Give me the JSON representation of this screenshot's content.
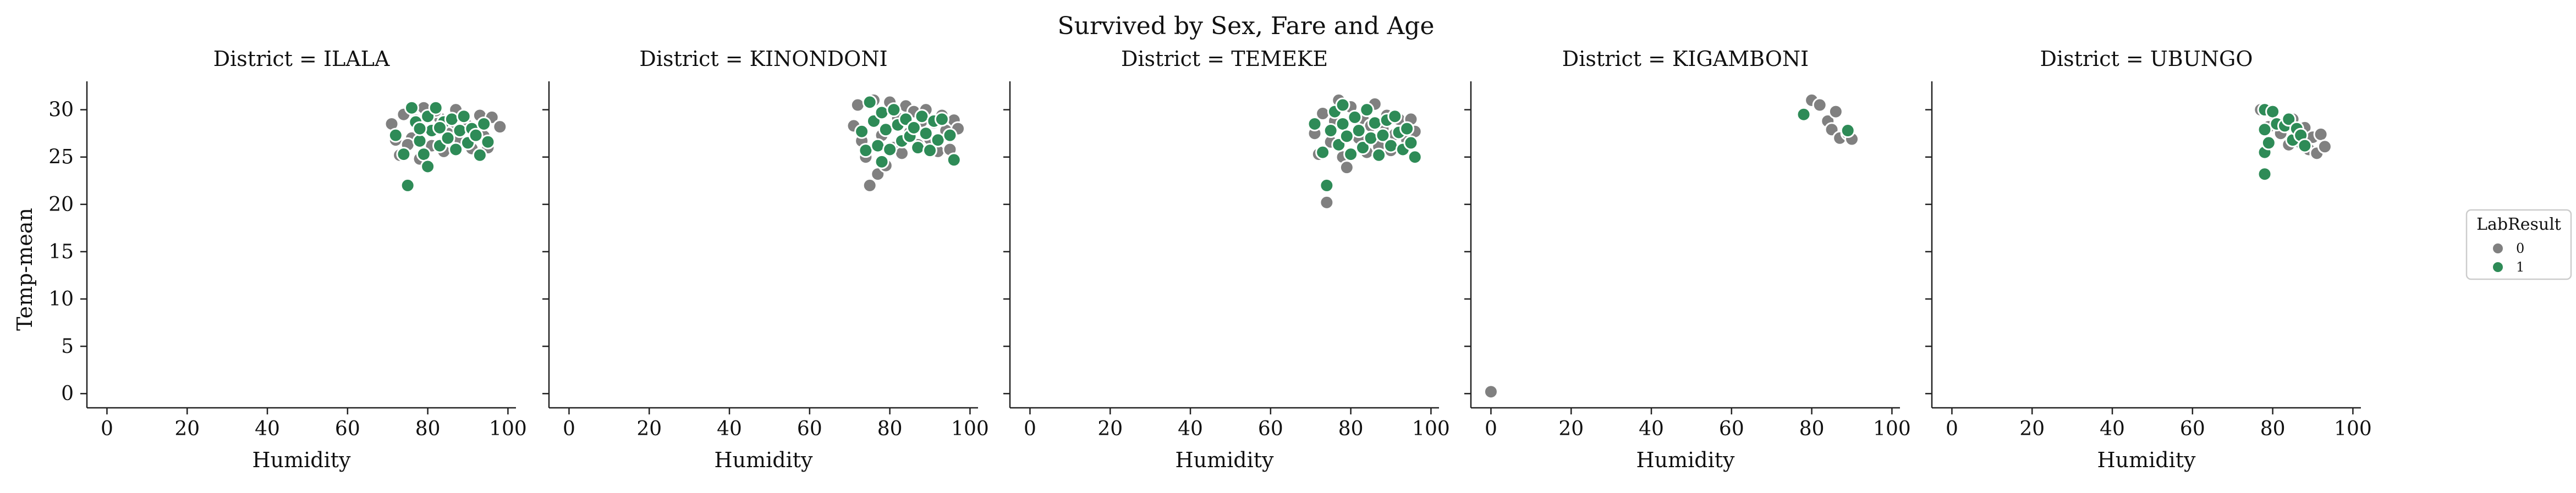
{
  "chart_data": {
    "type": "scatter",
    "title": "Survived by Sex, Fare and Age",
    "xlabel": "Humidity",
    "ylabel": "Temp-mean",
    "xlim": [
      -5,
      102
    ],
    "ylim": [
      -1.5,
      33
    ],
    "xticks": [
      0,
      20,
      40,
      60,
      80,
      100
    ],
    "yticks": [
      0,
      5,
      10,
      15,
      20,
      25,
      30
    ],
    "grid": false,
    "legend": {
      "title": "LabResult",
      "position": "right",
      "entries": [
        {
          "label": "0",
          "color": "#808080"
        },
        {
          "label": "1",
          "color": "#2e8b57"
        }
      ]
    },
    "colors": {
      "0": "#808080",
      "1": "#2e8b57"
    },
    "panels": [
      {
        "title": "District = ILALA",
        "points": [
          {
            "x": 71,
            "y": 28.5,
            "result": 0
          },
          {
            "x": 72,
            "y": 26.8,
            "result": 0
          },
          {
            "x": 73,
            "y": 25.2,
            "result": 0
          },
          {
            "x": 74,
            "y": 29.5,
            "result": 0
          },
          {
            "x": 76,
            "y": 27.0,
            "result": 0
          },
          {
            "x": 78,
            "y": 24.8,
            "result": 0
          },
          {
            "x": 79,
            "y": 30.2,
            "result": 0
          },
          {
            "x": 81,
            "y": 26.2,
            "result": 0
          },
          {
            "x": 83,
            "y": 29.1,
            "result": 0
          },
          {
            "x": 84,
            "y": 25.6,
            "result": 0
          },
          {
            "x": 86,
            "y": 28.0,
            "result": 0
          },
          {
            "x": 87,
            "y": 30.0,
            "result": 0
          },
          {
            "x": 88,
            "y": 26.9,
            "result": 0
          },
          {
            "x": 90,
            "y": 28.3,
            "result": 0
          },
          {
            "x": 91,
            "y": 25.9,
            "result": 0
          },
          {
            "x": 93,
            "y": 29.4,
            "result": 0
          },
          {
            "x": 94,
            "y": 27.2,
            "result": 0
          },
          {
            "x": 95,
            "y": 26.0,
            "result": 0
          },
          {
            "x": 96,
            "y": 29.2,
            "result": 0
          },
          {
            "x": 98,
            "y": 28.2,
            "result": 0
          },
          {
            "x": 82,
            "y": 29.9,
            "result": 0
          },
          {
            "x": 77,
            "y": 28.9,
            "result": 0
          },
          {
            "x": 85,
            "y": 27.5,
            "result": 0
          },
          {
            "x": 75,
            "y": 26.3,
            "result": 0
          },
          {
            "x": 72,
            "y": 27.3,
            "result": 1
          },
          {
            "x": 74,
            "y": 25.3,
            "result": 1
          },
          {
            "x": 75,
            "y": 22.0,
            "result": 1
          },
          {
            "x": 76,
            "y": 30.2,
            "result": 1
          },
          {
            "x": 77,
            "y": 28.7,
            "result": 1
          },
          {
            "x": 78,
            "y": 26.7,
            "result": 1
          },
          {
            "x": 79,
            "y": 25.3,
            "result": 1
          },
          {
            "x": 80,
            "y": 24.0,
            "result": 1
          },
          {
            "x": 80,
            "y": 29.3,
            "result": 1
          },
          {
            "x": 81,
            "y": 27.8,
            "result": 1
          },
          {
            "x": 82,
            "y": 30.2,
            "result": 1
          },
          {
            "x": 83,
            "y": 26.2,
            "result": 1
          },
          {
            "x": 84,
            "y": 28.7,
            "result": 1
          },
          {
            "x": 85,
            "y": 27.0,
            "result": 1
          },
          {
            "x": 86,
            "y": 29.0,
            "result": 1
          },
          {
            "x": 87,
            "y": 25.8,
            "result": 1
          },
          {
            "x": 88,
            "y": 27.8,
            "result": 1
          },
          {
            "x": 89,
            "y": 29.3,
            "result": 1
          },
          {
            "x": 90,
            "y": 26.5,
            "result": 1
          },
          {
            "x": 91,
            "y": 28.0,
            "result": 1
          },
          {
            "x": 92,
            "y": 27.3,
            "result": 1
          },
          {
            "x": 93,
            "y": 25.2,
            "result": 1
          },
          {
            "x": 94,
            "y": 28.5,
            "result": 1
          },
          {
            "x": 95,
            "y": 26.6,
            "result": 1
          },
          {
            "x": 78,
            "y": 28.0,
            "result": 1
          },
          {
            "x": 83,
            "y": 28.1,
            "result": 1
          }
        ]
      },
      {
        "title": "District = KINONDONI",
        "points": [
          {
            "x": 71,
            "y": 28.3,
            "result": 0
          },
          {
            "x": 72,
            "y": 30.5,
            "result": 0
          },
          {
            "x": 73,
            "y": 26.7,
            "result": 0
          },
          {
            "x": 74,
            "y": 25.0,
            "result": 0
          },
          {
            "x": 75,
            "y": 22.0,
            "result": 0
          },
          {
            "x": 76,
            "y": 31.0,
            "result": 0
          },
          {
            "x": 77,
            "y": 23.2,
            "result": 0
          },
          {
            "x": 78,
            "y": 27.3,
            "result": 0
          },
          {
            "x": 79,
            "y": 24.1,
            "result": 0
          },
          {
            "x": 80,
            "y": 30.8,
            "result": 0
          },
          {
            "x": 81,
            "y": 26.0,
            "result": 0
          },
          {
            "x": 82,
            "y": 29.1,
            "result": 0
          },
          {
            "x": 83,
            "y": 25.4,
            "result": 0
          },
          {
            "x": 84,
            "y": 30.4,
            "result": 0
          },
          {
            "x": 85,
            "y": 27.6,
            "result": 0
          },
          {
            "x": 86,
            "y": 29.8,
            "result": 0
          },
          {
            "x": 87,
            "y": 26.3,
            "result": 0
          },
          {
            "x": 88,
            "y": 28.8,
            "result": 0
          },
          {
            "x": 89,
            "y": 30.0,
            "result": 0
          },
          {
            "x": 90,
            "y": 26.9,
            "result": 0
          },
          {
            "x": 91,
            "y": 28.6,
            "result": 0
          },
          {
            "x": 92,
            "y": 25.6,
            "result": 0
          },
          {
            "x": 93,
            "y": 29.4,
            "result": 0
          },
          {
            "x": 94,
            "y": 27.8,
            "result": 0
          },
          {
            "x": 95,
            "y": 25.8,
            "result": 0
          },
          {
            "x": 96,
            "y": 28.9,
            "result": 0
          },
          {
            "x": 97,
            "y": 28.0,
            "result": 0
          },
          {
            "x": 73,
            "y": 27.7,
            "result": 1
          },
          {
            "x": 74,
            "y": 25.7,
            "result": 1
          },
          {
            "x": 75,
            "y": 30.8,
            "result": 1
          },
          {
            "x": 76,
            "y": 28.8,
            "result": 1
          },
          {
            "x": 77,
            "y": 26.2,
            "result": 1
          },
          {
            "x": 78,
            "y": 29.7,
            "result": 1
          },
          {
            "x": 78,
            "y": 24.5,
            "result": 1
          },
          {
            "x": 79,
            "y": 27.9,
            "result": 1
          },
          {
            "x": 80,
            "y": 25.8,
            "result": 1
          },
          {
            "x": 81,
            "y": 30.0,
            "result": 1
          },
          {
            "x": 82,
            "y": 28.4,
            "result": 1
          },
          {
            "x": 83,
            "y": 26.7,
            "result": 1
          },
          {
            "x": 84,
            "y": 29.0,
            "result": 1
          },
          {
            "x": 85,
            "y": 27.2,
            "result": 1
          },
          {
            "x": 86,
            "y": 28.1,
            "result": 1
          },
          {
            "x": 87,
            "y": 26.0,
            "result": 1
          },
          {
            "x": 88,
            "y": 29.3,
            "result": 1
          },
          {
            "x": 89,
            "y": 27.5,
            "result": 1
          },
          {
            "x": 90,
            "y": 25.7,
            "result": 1
          },
          {
            "x": 91,
            "y": 28.8,
            "result": 1
          },
          {
            "x": 92,
            "y": 26.8,
            "result": 1
          },
          {
            "x": 93,
            "y": 29.0,
            "result": 1
          },
          {
            "x": 95,
            "y": 27.3,
            "result": 1
          },
          {
            "x": 96,
            "y": 24.7,
            "result": 1
          }
        ]
      },
      {
        "title": "District = TEMEKE",
        "points": [
          {
            "x": 71,
            "y": 27.5,
            "result": 0
          },
          {
            "x": 72,
            "y": 25.3,
            "result": 0
          },
          {
            "x": 73,
            "y": 29.6,
            "result": 0
          },
          {
            "x": 74,
            "y": 20.2,
            "result": 0
          },
          {
            "x": 75,
            "y": 26.6,
            "result": 0
          },
          {
            "x": 76,
            "y": 28.8,
            "result": 0
          },
          {
            "x": 77,
            "y": 31.0,
            "result": 0
          },
          {
            "x": 78,
            "y": 25.0,
            "result": 0
          },
          {
            "x": 79,
            "y": 23.9,
            "result": 0
          },
          {
            "x": 80,
            "y": 30.3,
            "result": 0
          },
          {
            "x": 82,
            "y": 27.0,
            "result": 0
          },
          {
            "x": 83,
            "y": 29.1,
            "result": 0
          },
          {
            "x": 84,
            "y": 25.5,
            "result": 0
          },
          {
            "x": 85,
            "y": 28.3,
            "result": 0
          },
          {
            "x": 86,
            "y": 30.6,
            "result": 0
          },
          {
            "x": 87,
            "y": 26.1,
            "result": 0
          },
          {
            "x": 88,
            "y": 28.0,
            "result": 0
          },
          {
            "x": 89,
            "y": 29.4,
            "result": 0
          },
          {
            "x": 90,
            "y": 25.7,
            "result": 0
          },
          {
            "x": 91,
            "y": 27.4,
            "result": 0
          },
          {
            "x": 92,
            "y": 29.0,
            "result": 0
          },
          {
            "x": 94,
            "y": 26.8,
            "result": 0
          },
          {
            "x": 95,
            "y": 29.0,
            "result": 0
          },
          {
            "x": 96,
            "y": 27.7,
            "result": 0
          },
          {
            "x": 71,
            "y": 28.5,
            "result": 1
          },
          {
            "x": 73,
            "y": 25.5,
            "result": 1
          },
          {
            "x": 74,
            "y": 22.0,
            "result": 1
          },
          {
            "x": 75,
            "y": 27.8,
            "result": 1
          },
          {
            "x": 76,
            "y": 29.8,
            "result": 1
          },
          {
            "x": 77,
            "y": 26.3,
            "result": 1
          },
          {
            "x": 78,
            "y": 30.5,
            "result": 1
          },
          {
            "x": 78,
            "y": 28.5,
            "result": 1
          },
          {
            "x": 79,
            "y": 27.2,
            "result": 1
          },
          {
            "x": 80,
            "y": 25.3,
            "result": 1
          },
          {
            "x": 81,
            "y": 29.2,
            "result": 1
          },
          {
            "x": 82,
            "y": 27.8,
            "result": 1
          },
          {
            "x": 83,
            "y": 26.0,
            "result": 1
          },
          {
            "x": 84,
            "y": 30.0,
            "result": 1
          },
          {
            "x": 85,
            "y": 27.0,
            "result": 1
          },
          {
            "x": 86,
            "y": 28.6,
            "result": 1
          },
          {
            "x": 87,
            "y": 25.2,
            "result": 1
          },
          {
            "x": 88,
            "y": 27.3,
            "result": 1
          },
          {
            "x": 89,
            "y": 28.9,
            "result": 1
          },
          {
            "x": 90,
            "y": 26.2,
            "result": 1
          },
          {
            "x": 91,
            "y": 29.3,
            "result": 1
          },
          {
            "x": 92,
            "y": 27.6,
            "result": 1
          },
          {
            "x": 93,
            "y": 25.8,
            "result": 1
          },
          {
            "x": 94,
            "y": 28.0,
            "result": 1
          },
          {
            "x": 95,
            "y": 26.5,
            "result": 1
          },
          {
            "x": 96,
            "y": 25.0,
            "result": 1
          }
        ]
      },
      {
        "title": "District = KIGAMBONI",
        "points": [
          {
            "x": 0,
            "y": 0.2,
            "result": 0
          },
          {
            "x": 80,
            "y": 31.0,
            "result": 0
          },
          {
            "x": 82,
            "y": 30.5,
            "result": 0
          },
          {
            "x": 84,
            "y": 28.8,
            "result": 0
          },
          {
            "x": 85,
            "y": 27.9,
            "result": 0
          },
          {
            "x": 86,
            "y": 29.8,
            "result": 0
          },
          {
            "x": 87,
            "y": 27.0,
            "result": 0
          },
          {
            "x": 89,
            "y": 27.5,
            "result": 0
          },
          {
            "x": 90,
            "y": 26.9,
            "result": 0
          },
          {
            "x": 78,
            "y": 29.5,
            "result": 1
          },
          {
            "x": 89,
            "y": 27.8,
            "result": 1
          }
        ]
      },
      {
        "title": "District = UBUNGO",
        "points": [
          {
            "x": 77,
            "y": 30.0,
            "result": 0
          },
          {
            "x": 79,
            "y": 28.2,
            "result": 0
          },
          {
            "x": 80,
            "y": 29.6,
            "result": 0
          },
          {
            "x": 82,
            "y": 27.5,
            "result": 0
          },
          {
            "x": 84,
            "y": 26.3,
            "result": 0
          },
          {
            "x": 85,
            "y": 29.0,
            "result": 0
          },
          {
            "x": 86,
            "y": 27.8,
            "result": 0
          },
          {
            "x": 87,
            "y": 26.5,
            "result": 0
          },
          {
            "x": 88,
            "y": 28.1,
            "result": 0
          },
          {
            "x": 89,
            "y": 25.8,
            "result": 0
          },
          {
            "x": 90,
            "y": 27.1,
            "result": 0
          },
          {
            "x": 91,
            "y": 25.4,
            "result": 0
          },
          {
            "x": 92,
            "y": 27.4,
            "result": 0
          },
          {
            "x": 93,
            "y": 26.1,
            "result": 0
          },
          {
            "x": 78,
            "y": 23.2,
            "result": 1
          },
          {
            "x": 78,
            "y": 25.5,
            "result": 1
          },
          {
            "x": 78,
            "y": 27.9,
            "result": 1
          },
          {
            "x": 78,
            "y": 30.0,
            "result": 1
          },
          {
            "x": 79,
            "y": 26.5,
            "result": 1
          },
          {
            "x": 80,
            "y": 29.8,
            "result": 1
          },
          {
            "x": 81,
            "y": 28.5,
            "result": 1
          },
          {
            "x": 83,
            "y": 28.3,
            "result": 1
          },
          {
            "x": 84,
            "y": 29.0,
            "result": 1
          },
          {
            "x": 85,
            "y": 26.8,
            "result": 1
          },
          {
            "x": 86,
            "y": 28.0,
            "result": 1
          },
          {
            "x": 87,
            "y": 27.3,
            "result": 1
          },
          {
            "x": 88,
            "y": 26.2,
            "result": 1
          }
        ]
      }
    ]
  }
}
